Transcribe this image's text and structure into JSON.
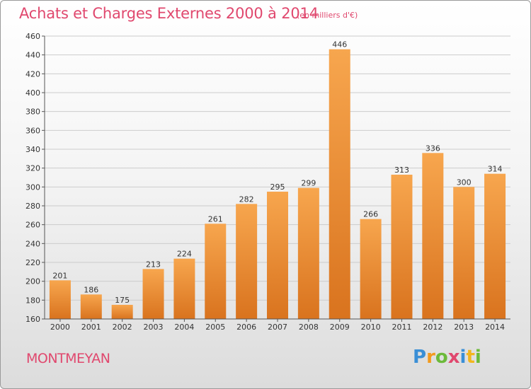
{
  "header": {
    "title": "Achats et Charges Externes 2000 à 2014",
    "subtitle": "(en milliers d'€)"
  },
  "footer": {
    "commune": "MONTMEYAN",
    "logo_text": "Proxiti"
  },
  "colors": {
    "bar_light": "#f7a64e",
    "bar_dark": "#d9731e",
    "title": "#e0486e",
    "grid": "#cccccc"
  },
  "chart_data": {
    "type": "bar",
    "title": "Achats et Charges Externes 2000 à 2014",
    "subtitle": "(en milliers d'€)",
    "categories": [
      "2000",
      "2001",
      "2002",
      "2003",
      "2004",
      "2005",
      "2006",
      "2007",
      "2008",
      "2009",
      "2010",
      "2011",
      "2012",
      "2013",
      "2014"
    ],
    "values": [
      201,
      186,
      175,
      213,
      224,
      261,
      282,
      295,
      299,
      446,
      266,
      313,
      336,
      300,
      314
    ],
    "ylim": [
      160,
      460
    ],
    "yticks": [
      160,
      180,
      200,
      220,
      240,
      260,
      280,
      300,
      320,
      340,
      360,
      380,
      400,
      420,
      440,
      460
    ],
    "grid": true,
    "legend": "none",
    "xlabel": "",
    "ylabel": ""
  }
}
